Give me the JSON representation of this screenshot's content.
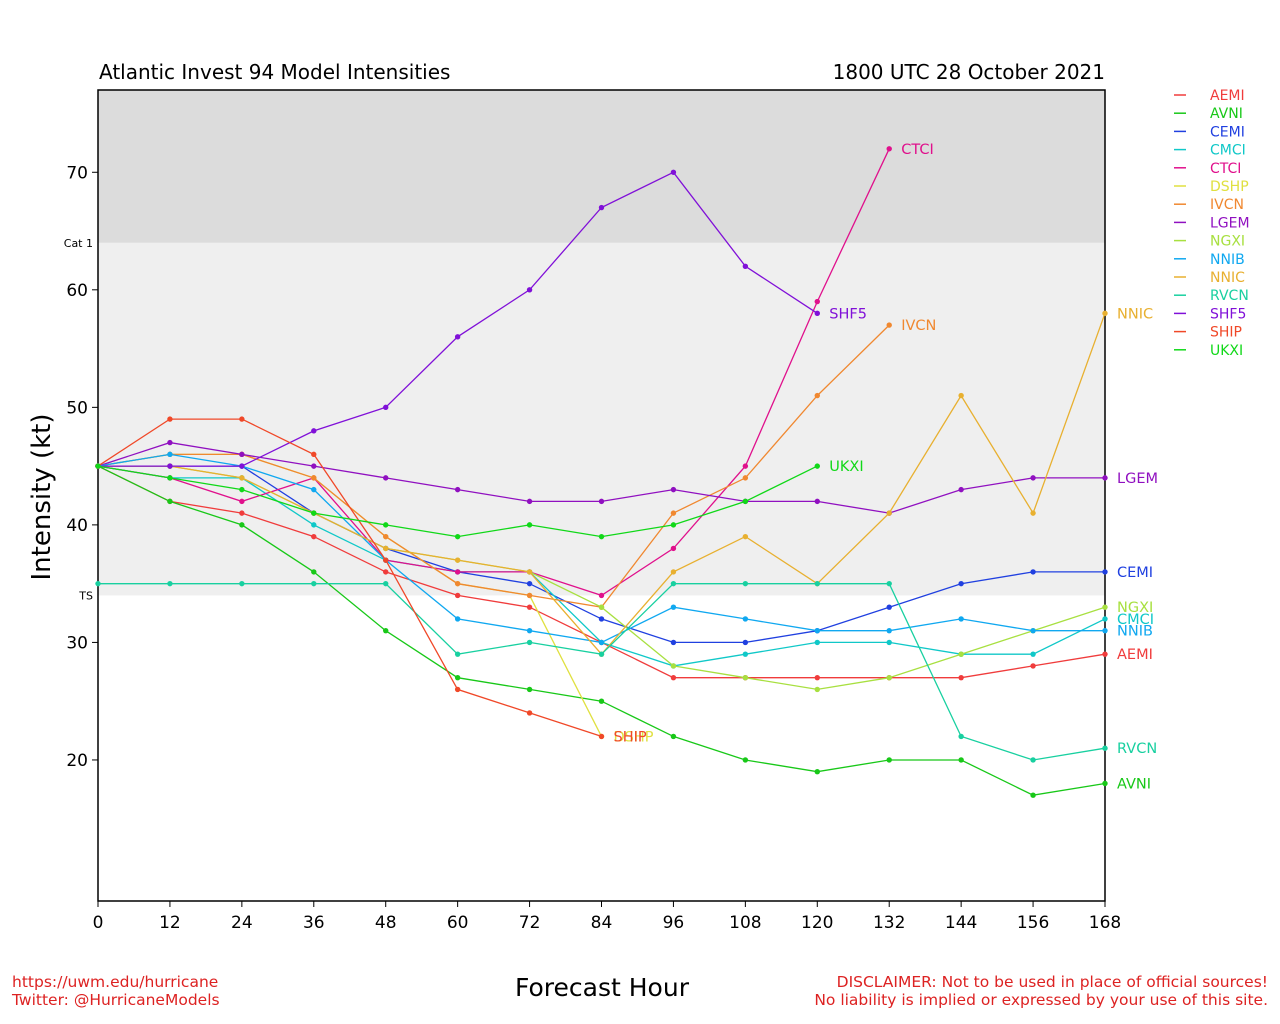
{
  "chart_data": {
    "type": "line",
    "title": "Atlantic Invest 94 Model Intensities",
    "subtitle": "1800 UTC 28 October 2021",
    "xlabel": "Forecast Hour",
    "ylabel": "Intensity (kt)",
    "xlim": [
      0,
      168
    ],
    "ylim": [
      8,
      77
    ],
    "x_ticks": [
      0,
      12,
      24,
      36,
      48,
      60,
      72,
      84,
      96,
      108,
      120,
      132,
      144,
      156,
      168
    ],
    "y_ticks": [
      20,
      30,
      40,
      50,
      60,
      70
    ],
    "grid": false,
    "legend_position": "right",
    "bands": [
      {
        "label": "TS",
        "from": 34,
        "to": 64,
        "color": "#efefef"
      },
      {
        "label": "Cat 1",
        "from": 64,
        "to": 77,
        "color": "#dcdcdc"
      }
    ],
    "series": [
      {
        "name": "AEMI",
        "color": "#f03c3c",
        "end_label": "AEMI",
        "x": [
          0,
          12,
          24,
          36,
          48,
          60,
          72,
          84,
          96,
          108,
          120,
          132,
          144,
          156,
          168
        ],
        "y": [
          45,
          42,
          41,
          39,
          36,
          34,
          33,
          30,
          27,
          27,
          27,
          27,
          27,
          28,
          29
        ]
      },
      {
        "name": "AVNI",
        "color": "#18c818",
        "end_label": "AVNI",
        "x": [
          0,
          12,
          24,
          36,
          48,
          60,
          72,
          84,
          96,
          108,
          120,
          132,
          144,
          156,
          168
        ],
        "y": [
          45,
          42,
          40,
          36,
          31,
          27,
          26,
          25,
          22,
          20,
          19,
          20,
          20,
          17,
          18
        ]
      },
      {
        "name": "CEMI",
        "color": "#2040e0",
        "end_label": "CEMI",
        "x": [
          0,
          12,
          24,
          36,
          48,
          60,
          72,
          84,
          96,
          108,
          120,
          132,
          144,
          156,
          168
        ],
        "y": [
          45,
          45,
          45,
          41,
          38,
          36,
          35,
          32,
          30,
          30,
          31,
          33,
          35,
          36,
          36
        ]
      },
      {
        "name": "CMCI",
        "color": "#10c8c8",
        "end_label": "CMCI",
        "x": [
          0,
          12,
          24,
          36,
          48,
          60,
          72,
          84,
          96,
          108,
          120,
          132,
          144,
          156,
          168
        ],
        "y": [
          45,
          44,
          44,
          40,
          37,
          36,
          36,
          30,
          28,
          29,
          30,
          30,
          29,
          29,
          32
        ]
      },
      {
        "name": "CTCI",
        "color": "#e0108c",
        "end_label": "CTCI",
        "x": [
          0,
          12,
          24,
          36,
          48,
          60,
          72,
          84,
          96,
          108,
          120,
          132
        ],
        "y": [
          45,
          44,
          42,
          44,
          37,
          36,
          36,
          34,
          38,
          45,
          59,
          72
        ]
      },
      {
        "name": "DSHP",
        "color": "#e0e040",
        "end_label": "DSHP",
        "x": [
          0,
          12,
          24,
          36,
          48,
          60,
          72,
          84
        ],
        "y": [
          45,
          46,
          46,
          44,
          39,
          35,
          34,
          22
        ]
      },
      {
        "name": "IVCN",
        "color": "#f08830",
        "end_label": "IVCN",
        "x": [
          0,
          12,
          24,
          36,
          48,
          60,
          72,
          84,
          96,
          108,
          120,
          132
        ],
        "y": [
          45,
          46,
          46,
          44,
          39,
          35,
          34,
          33,
          41,
          44,
          51,
          57
        ]
      },
      {
        "name": "LGEM",
        "color": "#9010c0",
        "end_label": "LGEM",
        "x": [
          0,
          12,
          24,
          36,
          48,
          60,
          72,
          84,
          96,
          108,
          120,
          132,
          144,
          156,
          168
        ],
        "y": [
          45,
          47,
          46,
          45,
          44,
          43,
          42,
          42,
          43,
          42,
          42,
          41,
          43,
          44,
          44
        ]
      },
      {
        "name": "NGXI",
        "color": "#a8e040",
        "end_label": "NGXI",
        "x": [
          0,
          12,
          24,
          36,
          48,
          60,
          72,
          84,
          96,
          108,
          120,
          132,
          144,
          156,
          168
        ],
        "y": [
          45,
          45,
          44,
          41,
          38,
          37,
          36,
          33,
          28,
          27,
          26,
          27,
          29,
          31,
          33
        ]
      },
      {
        "name": "NNIB",
        "color": "#10a8f0",
        "end_label": "NNIB",
        "x": [
          0,
          12,
          24,
          36,
          48,
          60,
          72,
          84,
          96,
          108,
          120,
          132,
          144,
          156,
          168
        ],
        "y": [
          45,
          46,
          45,
          43,
          37,
          32,
          31,
          30,
          33,
          32,
          31,
          31,
          32,
          31,
          31
        ]
      },
      {
        "name": "NNIC",
        "color": "#e8b030",
        "end_label": "NNIC",
        "x": [
          0,
          12,
          24,
          36,
          48,
          60,
          72,
          84,
          96,
          108,
          120,
          132,
          144,
          156,
          168
        ],
        "y": [
          45,
          45,
          44,
          41,
          38,
          37,
          36,
          29,
          36,
          39,
          35,
          41,
          51,
          41,
          58
        ]
      },
      {
        "name": "RVCN",
        "color": "#18d0a0",
        "end_label": "RVCN",
        "x": [
          0,
          12,
          24,
          36,
          48,
          60,
          72,
          84,
          96,
          108,
          120,
          132,
          144,
          156,
          168
        ],
        "y": [
          35,
          35,
          35,
          35,
          35,
          29,
          30,
          29,
          35,
          35,
          35,
          35,
          22,
          20,
          21
        ]
      },
      {
        "name": "SHF5",
        "color": "#8010d8",
        "end_label": "SHF5",
        "x": [
          0,
          12,
          24,
          36,
          48,
          60,
          72,
          84,
          96,
          108,
          120
        ],
        "y": [
          45,
          45,
          45,
          48,
          50,
          56,
          60,
          67,
          70,
          62,
          58
        ]
      },
      {
        "name": "SHIP",
        "color": "#f04828",
        "end_label": "SHIP",
        "x": [
          0,
          12,
          24,
          36,
          48,
          60,
          72,
          84
        ],
        "y": [
          45,
          49,
          49,
          46,
          37,
          26,
          24,
          22
        ]
      },
      {
        "name": "UKXI",
        "color": "#10d818",
        "end_label": "UKXI",
        "x": [
          0,
          12,
          24,
          36,
          48,
          60,
          72,
          84,
          96,
          108,
          120
        ],
        "y": [
          45,
          44,
          43,
          41,
          40,
          39,
          40,
          39,
          40,
          42,
          45
        ]
      }
    ]
  },
  "footer": {
    "left_line1": "https://uwm.edu/hurricane",
    "left_line2": "Twitter: @HurricaneModels",
    "right_line1": "DISCLAIMER: Not to be used in place of official sources!",
    "right_line2": "No liability is implied or expressed by your use of this site."
  }
}
